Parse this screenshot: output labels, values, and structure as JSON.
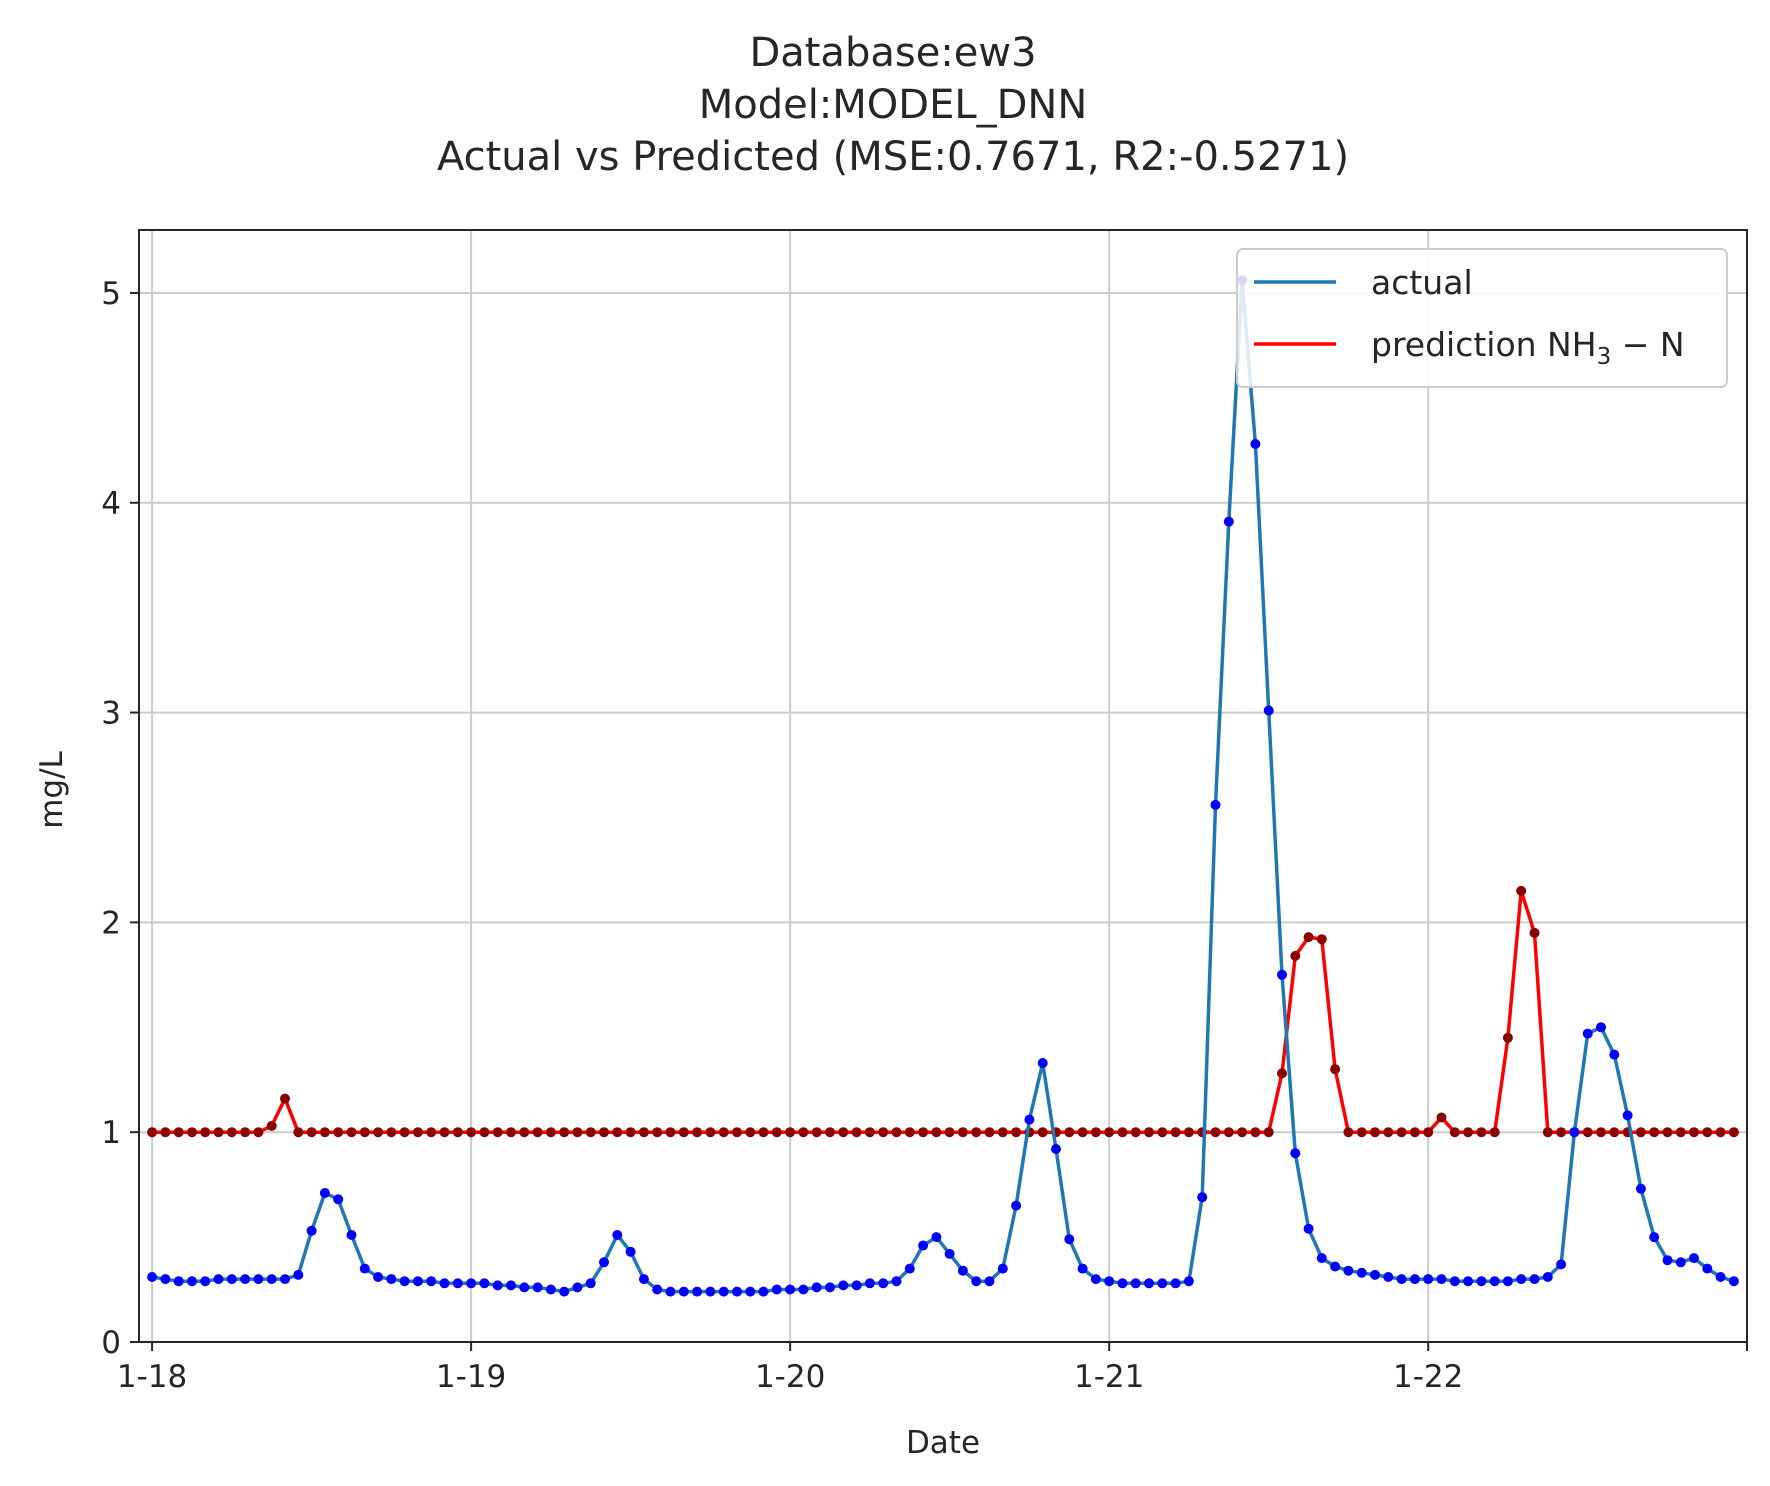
{
  "colors": {
    "actual_line": "#1f77b4",
    "actual_marker": "#0000ff",
    "prediction_line": "#ff0000",
    "prediction_marker": "#8b0000",
    "grid": "#cccccc",
    "axes": "#262626"
  },
  "chart_data": {
    "type": "line",
    "title_lines": [
      "Database:ew3",
      "Model:MODEL_DNN",
      "Actual vs Predicted (MSE:0.7671, R2:-0.5271)"
    ],
    "xlabel": "Date",
    "ylabel": "mg/L",
    "x_ticks": [
      "1-18",
      "1-19",
      "1-20",
      "1-21",
      "1-22"
    ],
    "xlim": [
      "1-17 23:01",
      "1-22 23:59"
    ],
    "sample_interval_hours": 1,
    "x_start": "1-18 00:00",
    "y_ticks": [
      0,
      1,
      2,
      3,
      4,
      5
    ],
    "ylim": [
      0,
      5.3
    ],
    "grid": true,
    "legend": {
      "position": "top-right",
      "actual_label": "actual",
      "prediction_main": "prediction NH",
      "prediction_sub": "3",
      "prediction_tail": " − N"
    },
    "series": [
      {
        "name": "actual",
        "values": [
          0.31,
          0.3,
          0.29,
          0.29,
          0.29,
          0.3,
          0.3,
          0.3,
          0.3,
          0.3,
          0.3,
          0.32,
          0.53,
          0.71,
          0.68,
          0.51,
          0.35,
          0.31,
          0.3,
          0.29,
          0.29,
          0.29,
          0.28,
          0.28,
          0.28,
          0.28,
          0.27,
          0.27,
          0.26,
          0.26,
          0.25,
          0.24,
          0.26,
          0.28,
          0.38,
          0.51,
          0.43,
          0.3,
          0.25,
          0.24,
          0.24,
          0.24,
          0.24,
          0.24,
          0.24,
          0.24,
          0.24,
          0.25,
          0.25,
          0.25,
          0.26,
          0.26,
          0.27,
          0.27,
          0.28,
          0.28,
          0.29,
          0.35,
          0.46,
          0.5,
          0.42,
          0.34,
          0.29,
          0.29,
          0.35,
          0.65,
          1.06,
          1.33,
          0.92,
          0.49,
          0.35,
          0.3,
          0.29,
          0.28,
          0.28,
          0.28,
          0.28,
          0.28,
          0.29,
          0.69,
          2.56,
          3.91,
          5.06,
          4.28,
          3.01,
          1.75,
          0.9,
          0.54,
          0.4,
          0.36,
          0.34,
          0.33,
          0.32,
          0.31,
          0.3,
          0.3,
          0.3,
          0.3,
          0.29,
          0.29,
          0.29,
          0.29,
          0.29,
          0.3,
          0.3,
          0.31,
          0.37,
          1.0,
          1.47,
          1.5,
          1.37,
          1.08,
          0.73,
          0.5,
          0.39,
          0.38,
          0.4,
          0.35,
          0.31,
          0.29
        ]
      },
      {
        "name": "prediction NH3-N",
        "values": [
          1.0,
          1.0,
          1.0,
          1.0,
          1.0,
          1.0,
          1.0,
          1.0,
          1.0,
          1.03,
          1.16,
          1.0,
          1.0,
          1.0,
          1.0,
          1.0,
          1.0,
          1.0,
          1.0,
          1.0,
          1.0,
          1.0,
          1.0,
          1.0,
          1.0,
          1.0,
          1.0,
          1.0,
          1.0,
          1.0,
          1.0,
          1.0,
          1.0,
          1.0,
          1.0,
          1.0,
          1.0,
          1.0,
          1.0,
          1.0,
          1.0,
          1.0,
          1.0,
          1.0,
          1.0,
          1.0,
          1.0,
          1.0,
          1.0,
          1.0,
          1.0,
          1.0,
          1.0,
          1.0,
          1.0,
          1.0,
          1.0,
          1.0,
          1.0,
          1.0,
          1.0,
          1.0,
          1.0,
          1.0,
          1.0,
          1.0,
          1.0,
          1.0,
          1.0,
          1.0,
          1.0,
          1.0,
          1.0,
          1.0,
          1.0,
          1.0,
          1.0,
          1.0,
          1.0,
          1.0,
          1.0,
          1.0,
          1.0,
          1.0,
          1.0,
          1.28,
          1.84,
          1.93,
          1.92,
          1.3,
          1.0,
          1.0,
          1.0,
          1.0,
          1.0,
          1.0,
          1.0,
          1.07,
          1.0,
          1.0,
          1.0,
          1.0,
          1.45,
          2.15,
          1.95,
          1.0,
          1.0,
          1.0,
          1.0,
          1.0,
          1.0,
          1.0,
          1.0,
          1.0,
          1.0,
          1.0,
          1.0,
          1.0,
          1.0,
          1.0
        ]
      }
    ]
  }
}
